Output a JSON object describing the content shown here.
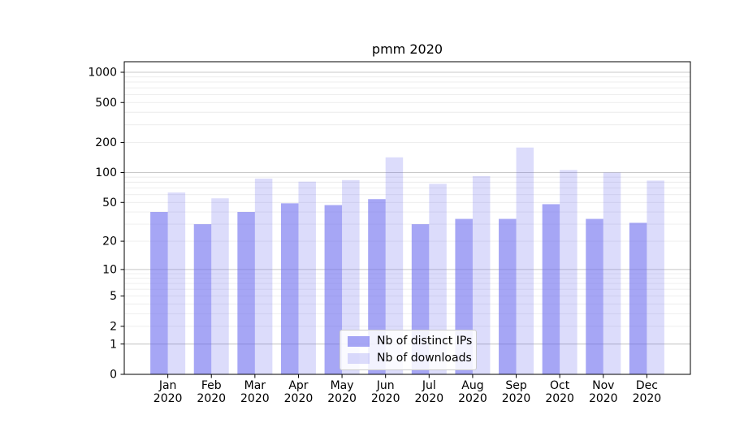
{
  "chart_data": {
    "type": "bar",
    "title": "pmm 2020",
    "categories": [
      "Jan",
      "Feb",
      "Mar",
      "Apr",
      "May",
      "Jun",
      "Jul",
      "Aug",
      "Sep",
      "Oct",
      "Nov",
      "Dec"
    ],
    "x_tick_second_line": "2020",
    "series": [
      {
        "name": "Nb of distinct IPs",
        "color": "#6666ee",
        "opacity": 0.58,
        "values": [
          40,
          30,
          40,
          49,
          47,
          54,
          30,
          34,
          34,
          48,
          34,
          31
        ]
      },
      {
        "name": "Nb of downloads",
        "color": "#6666ee",
        "opacity": 0.23,
        "values": [
          63,
          55,
          87,
          81,
          84,
          142,
          77,
          92,
          178,
          106,
          100,
          83
        ]
      }
    ],
    "y_scale": "log1p",
    "y_ticks": [
      0,
      1,
      2,
      5,
      10,
      20,
      50,
      100,
      200,
      500,
      1000
    ],
    "y_max": 1000,
    "grid": {
      "major_values": [
        1,
        10,
        100,
        1000
      ],
      "minor_values": [
        2,
        3,
        4,
        5,
        6,
        7,
        8,
        9,
        20,
        30,
        40,
        50,
        60,
        70,
        80,
        90,
        200,
        300,
        400,
        500,
        600,
        700,
        800,
        900
      ],
      "major_color": "#c8c8c8",
      "minor_color": "#ececec"
    },
    "legend_position": "lower center",
    "axis_color": "#000000",
    "background": "#ffffff"
  }
}
